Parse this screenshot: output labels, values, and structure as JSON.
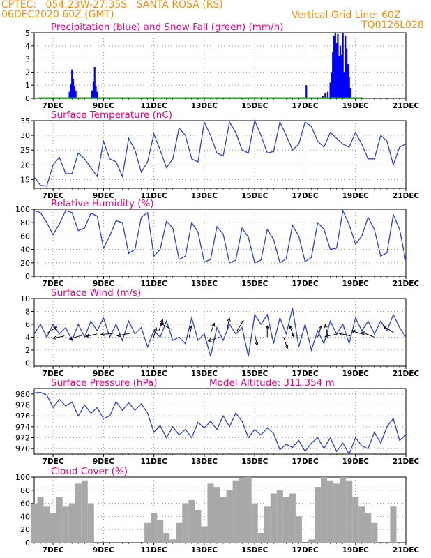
{
  "header": {
    "line1_left": "CPTEC:   054:23W-27:35S   SANTA ROSA (RS)",
    "line2_left": "06DEC2020 60Z (GMT)",
    "grid_note": "Vertical Grid Line: 60Z",
    "code": "TQ0126L028"
  },
  "colors": {
    "header": "#ff8c00",
    "title": "#e6007e",
    "rain": "#0000ff",
    "snow": "#00aa00",
    "line": "#2a3fd6",
    "cloud": "#a8a8a8",
    "arrow": "#000000"
  },
  "x_axis": {
    "day_min": 6.25,
    "day_max": 21.0,
    "ticks": [
      7,
      9,
      11,
      13,
      15,
      17,
      19,
      21
    ],
    "tick_labels": [
      "7DEC",
      "9DEC",
      "11DEC",
      "13DEC",
      "15DEC",
      "17DEC",
      "19DEC",
      "21DEC"
    ]
  },
  "chart_data": [
    {
      "id": "precip",
      "type": "bar",
      "title": "Precipitation (blue) and Snow Fall (green) (mm/h)",
      "ylim": [
        0,
        5
      ],
      "yticks": [
        0,
        1,
        2,
        3,
        4,
        5
      ],
      "series": [
        {
          "name": "Precipitation",
          "points": [
            [
              7.65,
              0.5
            ],
            [
              7.7,
              1.1
            ],
            [
              7.75,
              2.2
            ],
            [
              7.8,
              1.5
            ],
            [
              7.85,
              0.9
            ],
            [
              7.9,
              0.6
            ],
            [
              8.55,
              0.6
            ],
            [
              8.6,
              1.3
            ],
            [
              8.65,
              2.4
            ],
            [
              8.7,
              0.9
            ],
            [
              8.75,
              0.5
            ],
            [
              17.05,
              1.0
            ],
            [
              17.7,
              0.2
            ],
            [
              17.8,
              0.4
            ],
            [
              17.9,
              0.5
            ],
            [
              18.0,
              1.2
            ],
            [
              18.05,
              2.0
            ],
            [
              18.1,
              3.5
            ],
            [
              18.15,
              4.8
            ],
            [
              18.2,
              5.0
            ],
            [
              18.25,
              4.2
            ],
            [
              18.3,
              4.9
            ],
            [
              18.35,
              3.2
            ],
            [
              18.4,
              4.0
            ],
            [
              18.45,
              3.3
            ],
            [
              18.5,
              5.0
            ],
            [
              18.55,
              2.0
            ],
            [
              18.6,
              4.8
            ],
            [
              18.65,
              3.8
            ],
            [
              18.7,
              2.6
            ],
            [
              18.75,
              1.6
            ],
            [
              18.8,
              0.8
            ]
          ]
        },
        {
          "name": "Snow Fall",
          "points": []
        }
      ]
    },
    {
      "id": "temp",
      "type": "line",
      "title": "Surface Temperature (nC)",
      "ylim": [
        12,
        35
      ],
      "yticks": [
        15,
        20,
        25,
        30,
        35
      ],
      "x": [
        6.25,
        6.5,
        6.75,
        7.0,
        7.25,
        7.5,
        7.75,
        8.0,
        8.25,
        8.5,
        8.75,
        9.0,
        9.25,
        9.5,
        9.75,
        10.0,
        10.25,
        10.5,
        10.75,
        11.0,
        11.25,
        11.5,
        11.75,
        12.0,
        12.25,
        12.5,
        12.75,
        13.0,
        13.25,
        13.5,
        13.75,
        14.0,
        14.25,
        14.5,
        14.75,
        15.0,
        15.25,
        15.5,
        15.75,
        16.0,
        16.25,
        16.5,
        16.75,
        17.0,
        17.25,
        17.5,
        17.75,
        18.0,
        18.25,
        18.5,
        18.75,
        19.0,
        19.25,
        19.5,
        19.75,
        20.0,
        20.25,
        20.5,
        20.75,
        21.0
      ],
      "y": [
        15.8,
        13.0,
        12.8,
        20.0,
        22.5,
        17.0,
        17.0,
        24.0,
        22.0,
        19.0,
        16.0,
        28.0,
        22.0,
        21.0,
        16.0,
        29.0,
        25.0,
        17.5,
        21.0,
        30.5,
        25.0,
        19.0,
        22.0,
        32.5,
        30.0,
        22.0,
        21.0,
        34.5,
        30.0,
        24.0,
        23.0,
        34.5,
        31.0,
        25.0,
        24.0,
        35.0,
        30.0,
        24.0,
        24.5,
        34.5,
        30.0,
        25.0,
        27.0,
        34.5,
        33.0,
        28.0,
        26.0,
        31.0,
        29.0,
        27.0,
        26.0,
        31.0,
        27.0,
        22.0,
        22.0,
        30.0,
        28.0,
        20.0,
        26.0,
        27.0
      ]
    },
    {
      "id": "rh",
      "type": "line",
      "title": "Relative Humidity (%)",
      "ylim": [
        0,
        100
      ],
      "yticks": [
        0,
        20,
        40,
        60,
        80,
        100
      ],
      "x": [
        6.25,
        6.5,
        6.75,
        7.0,
        7.25,
        7.5,
        7.75,
        8.0,
        8.25,
        8.5,
        8.75,
        9.0,
        9.25,
        9.5,
        9.75,
        10.0,
        10.25,
        10.5,
        10.75,
        11.0,
        11.25,
        11.5,
        11.75,
        12.0,
        12.25,
        12.5,
        12.75,
        13.0,
        13.25,
        13.5,
        13.75,
        14.0,
        14.25,
        14.5,
        14.75,
        15.0,
        15.25,
        15.5,
        15.75,
        16.0,
        16.25,
        16.5,
        16.75,
        17.0,
        17.25,
        17.5,
        17.75,
        18.0,
        18.25,
        18.5,
        18.75,
        19.0,
        19.25,
        19.5,
        19.75,
        20.0,
        20.25,
        20.5,
        20.75,
        21.0
      ],
      "y": [
        98,
        95,
        80,
        62,
        78,
        98,
        95,
        68,
        72,
        94,
        90,
        42,
        60,
        83,
        80,
        34,
        40,
        88,
        95,
        30,
        40,
        82,
        72,
        25,
        30,
        80,
        66,
        21,
        25,
        74,
        63,
        20,
        24,
        72,
        58,
        20,
        24,
        70,
        55,
        20,
        26,
        76,
        60,
        22,
        28,
        80,
        70,
        40,
        42,
        98,
        77,
        48,
        60,
        88,
        70,
        30,
        35,
        92,
        70,
        22
      ]
    },
    {
      "id": "wind",
      "type": "line",
      "title": "Surface Wind (m/s)",
      "ylim": [
        -0.5,
        10
      ],
      "yticks": [
        0,
        2,
        4,
        6,
        8,
        10
      ],
      "x": [
        6.25,
        6.5,
        6.75,
        7.0,
        7.25,
        7.5,
        7.75,
        8.0,
        8.25,
        8.5,
        8.75,
        9.0,
        9.25,
        9.5,
        9.75,
        10.0,
        10.25,
        10.5,
        10.75,
        11.0,
        11.25,
        11.5,
        11.75,
        12.0,
        12.25,
        12.5,
        12.75,
        13.0,
        13.25,
        13.5,
        13.75,
        14.0,
        14.25,
        14.5,
        14.75,
        15.0,
        15.25,
        15.5,
        15.75,
        16.0,
        16.25,
        16.5,
        16.75,
        17.0,
        17.25,
        17.5,
        17.75,
        18.0,
        18.25,
        18.5,
        18.75,
        19.0,
        19.25,
        19.5,
        19.75,
        20.0,
        20.25,
        20.5,
        20.75,
        21.0
      ],
      "y": [
        4.5,
        6.0,
        4.0,
        6.0,
        4.5,
        5.5,
        3.5,
        6.0,
        4.0,
        6.5,
        5.0,
        7.0,
        4.0,
        6.0,
        3.5,
        6.5,
        4.5,
        5.5,
        2.5,
        5.0,
        4.0,
        6.5,
        3.5,
        4.0,
        3.0,
        7.0,
        3.5,
        4.5,
        1.0,
        5.5,
        3.5,
        6.0,
        4.5,
        5.5,
        1.0,
        7.5,
        6.0,
        7.5,
        3.0,
        7.0,
        4.5,
        8.5,
        2.5,
        6.0,
        2.0,
        5.0,
        3.0,
        6.5,
        4.5,
        6.0,
        3.0,
        7.0,
        5.0,
        6.5,
        4.5,
        6.5,
        5.0,
        7.5,
        5.5,
        4.0
      ],
      "arrows": [
        [
          6.75,
          4.6,
          0.8,
          0.5
        ],
        [
          7.45,
          4.2,
          -0.9,
          -0.2
        ],
        [
          8.15,
          4.3,
          -1.0,
          -0.3
        ],
        [
          8.75,
          4.5,
          -0.9,
          -0.2
        ],
        [
          9.4,
          4.6,
          -1.0,
          -0.1
        ],
        [
          10.05,
          4.6,
          -1.0,
          -0.2
        ],
        [
          10.95,
          3.5,
          0.3,
          1.0
        ],
        [
          11.2,
          5.0,
          0.3,
          0.9
        ],
        [
          11.7,
          5.2,
          -0.9,
          0.5
        ],
        [
          12.4,
          4.0,
          0.2,
          0.9
        ],
        [
          13.25,
          4.6,
          0.3,
          0.8
        ],
        [
          13.6,
          4.0,
          -0.9,
          -0.3
        ],
        [
          13.9,
          5.2,
          0.2,
          0.9
        ],
        [
          14.3,
          5.0,
          0.5,
          0.8
        ],
        [
          15.0,
          4.5,
          0.2,
          -0.9
        ],
        [
          15.5,
          4.0,
          0.0,
          0.9
        ],
        [
          16.15,
          4.0,
          0.3,
          -0.9
        ],
        [
          16.55,
          4.0,
          -0.3,
          0.9
        ],
        [
          16.9,
          4.3,
          -0.9,
          0.0
        ],
        [
          17.5,
          4.0,
          0.3,
          0.9
        ],
        [
          17.9,
          4.2,
          -0.2,
          0.9
        ],
        [
          18.3,
          4.5,
          -1.0,
          -0.2
        ],
        [
          18.8,
          4.2,
          -0.9,
          0.2
        ],
        [
          19.35,
          4.4,
          -1.0,
          0.3
        ],
        [
          19.75,
          4.0,
          -1.0,
          0.4
        ],
        [
          20.55,
          4.6,
          -0.9,
          0.6
        ]
      ]
    },
    {
      "id": "pres",
      "type": "line",
      "title": "Surface Pressure (hPa)",
      "note": "Model Altitude: 311.354  m",
      "ylim": [
        969,
        981
      ],
      "yticks": [
        970,
        972,
        974,
        976,
        978,
        980
      ],
      "x": [
        6.25,
        6.5,
        6.75,
        7.0,
        7.25,
        7.5,
        7.75,
        8.0,
        8.25,
        8.5,
        8.75,
        9.0,
        9.25,
        9.5,
        9.75,
        10.0,
        10.25,
        10.5,
        10.75,
        11.0,
        11.25,
        11.5,
        11.75,
        12.0,
        12.25,
        12.5,
        12.75,
        13.0,
        13.25,
        13.5,
        13.75,
        14.0,
        14.25,
        14.5,
        14.75,
        15.0,
        15.25,
        15.5,
        15.75,
        16.0,
        16.25,
        16.5,
        16.75,
        17.0,
        17.25,
        17.5,
        17.75,
        18.0,
        18.25,
        18.5,
        18.75,
        19.0,
        19.25,
        19.5,
        19.75,
        20.0,
        20.25,
        20.5,
        20.75,
        21.0
      ],
      "y": [
        980.2,
        980.3,
        979.8,
        977.5,
        979.0,
        977.8,
        978.5,
        976.0,
        978.0,
        976.5,
        977.5,
        975.5,
        976.0,
        978.6,
        977.0,
        978.4,
        977.0,
        978.2,
        976.5,
        973.0,
        974.2,
        972.0,
        974.0,
        972.5,
        973.5,
        972.0,
        974.8,
        973.8,
        975.0,
        973.5,
        976.0,
        974.0,
        976.5,
        975.0,
        972.0,
        973.5,
        972.5,
        973.8,
        972.8,
        969.8,
        970.8,
        970.2,
        971.5,
        969.5,
        971.0,
        972.0,
        970.0,
        972.0,
        969.5,
        971.0,
        969.0,
        972.0,
        970.5,
        970.0,
        973.0,
        971.0,
        974.0,
        975.5,
        971.5,
        972.5
      ]
    },
    {
      "id": "cloud",
      "type": "bar",
      "title": "Cloud Cover (%)",
      "ylim": [
        0,
        100
      ],
      "yticks": [
        0,
        20,
        40,
        60,
        80,
        100
      ],
      "x": [
        6.25,
        6.5,
        6.75,
        7.0,
        7.25,
        7.5,
        7.75,
        8.0,
        8.25,
        8.5,
        8.75,
        9.0,
        9.25,
        9.5,
        9.75,
        10.0,
        10.25,
        10.5,
        10.75,
        11.0,
        11.25,
        11.5,
        11.75,
        12.0,
        12.25,
        12.5,
        12.75,
        13.0,
        13.25,
        13.5,
        13.75,
        14.0,
        14.25,
        14.5,
        14.75,
        15.0,
        15.25,
        15.5,
        15.75,
        16.0,
        16.25,
        16.5,
        16.75,
        17.0,
        17.25,
        17.5,
        17.75,
        18.0,
        18.25,
        18.5,
        18.75,
        19.0,
        19.25,
        19.5,
        19.75,
        20.0,
        20.25,
        20.5,
        20.75,
        21.0
      ],
      "y": [
        60,
        70,
        55,
        45,
        70,
        55,
        60,
        90,
        95,
        60,
        0,
        0,
        0,
        0,
        0,
        0,
        0,
        0,
        30,
        45,
        35,
        15,
        5,
        30,
        60,
        65,
        50,
        25,
        90,
        85,
        70,
        80,
        95,
        98,
        100,
        60,
        15,
        55,
        75,
        80,
        70,
        75,
        40,
        0,
        5,
        85,
        100,
        95,
        90,
        100,
        95,
        70,
        55,
        45,
        30,
        0,
        0,
        55,
        0,
        0
      ]
    }
  ]
}
